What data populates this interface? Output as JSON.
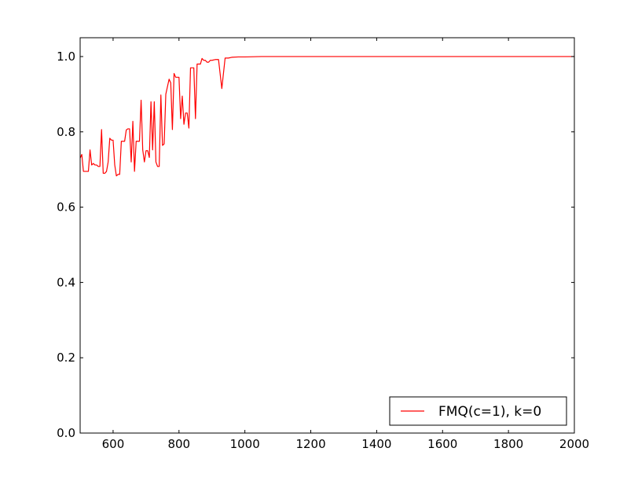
{
  "chart_data": {
    "type": "line",
    "title": "",
    "xlabel": "",
    "ylabel": "",
    "xlim": [
      500,
      2000
    ],
    "ylim": [
      0.0,
      1.05
    ],
    "x_ticks": [
      {
        "value": 600,
        "label": "600"
      },
      {
        "value": 800,
        "label": "800"
      },
      {
        "value": 1000,
        "label": "1000"
      },
      {
        "value": 1200,
        "label": "1200"
      },
      {
        "value": 1400,
        "label": "1400"
      },
      {
        "value": 1600,
        "label": "1600"
      },
      {
        "value": 1800,
        "label": "1800"
      },
      {
        "value": 2000,
        "label": "2000"
      }
    ],
    "y_ticks": [
      {
        "value": 0.0,
        "label": "0.0"
      },
      {
        "value": 0.2,
        "label": "0.2"
      },
      {
        "value": 0.4,
        "label": "0.4"
      },
      {
        "value": 0.6,
        "label": "0.6"
      },
      {
        "value": 0.8,
        "label": "0.8"
      },
      {
        "value": 1.0,
        "label": "1.0"
      }
    ],
    "grid": false,
    "legend": {
      "placement": "lower-right"
    },
    "series": [
      {
        "name": "FMQ(c=1), k=0",
        "color": "#ff0000",
        "points": [
          [
            500,
            0.73
          ],
          [
            505,
            0.74
          ],
          [
            510,
            0.695
          ],
          [
            520,
            0.695
          ],
          [
            525,
            0.695
          ],
          [
            530,
            0.752
          ],
          [
            535,
            0.712
          ],
          [
            540,
            0.716
          ],
          [
            545,
            0.712
          ],
          [
            550,
            0.712
          ],
          [
            555,
            0.708
          ],
          [
            560,
            0.708
          ],
          [
            565,
            0.806
          ],
          [
            570,
            0.69
          ],
          [
            575,
            0.69
          ],
          [
            580,
            0.695
          ],
          [
            585,
            0.72
          ],
          [
            590,
            0.783
          ],
          [
            595,
            0.778
          ],
          [
            600,
            0.778
          ],
          [
            605,
            0.712
          ],
          [
            610,
            0.683
          ],
          [
            615,
            0.687
          ],
          [
            620,
            0.687
          ],
          [
            625,
            0.775
          ],
          [
            630,
            0.775
          ],
          [
            635,
            0.775
          ],
          [
            640,
            0.805
          ],
          [
            645,
            0.808
          ],
          [
            650,
            0.808
          ],
          [
            655,
            0.72
          ],
          [
            660,
            0.828
          ],
          [
            665,
            0.695
          ],
          [
            670,
            0.775
          ],
          [
            675,
            0.775
          ],
          [
            680,
            0.775
          ],
          [
            685,
            0.884
          ],
          [
            690,
            0.752
          ],
          [
            695,
            0.72
          ],
          [
            700,
            0.75
          ],
          [
            705,
            0.75
          ],
          [
            710,
            0.732
          ],
          [
            715,
            0.88
          ],
          [
            720,
            0.752
          ],
          [
            725,
            0.88
          ],
          [
            730,
            0.72
          ],
          [
            735,
            0.708
          ],
          [
            740,
            0.708
          ],
          [
            745,
            0.898
          ],
          [
            750,
            0.764
          ],
          [
            755,
            0.768
          ],
          [
            760,
            0.9
          ],
          [
            765,
            0.92
          ],
          [
            770,
            0.94
          ],
          [
            775,
            0.93
          ],
          [
            780,
            0.806
          ],
          [
            785,
            0.955
          ],
          [
            790,
            0.945
          ],
          [
            795,
            0.945
          ],
          [
            800,
            0.945
          ],
          [
            805,
            0.835
          ],
          [
            810,
            0.895
          ],
          [
            815,
            0.82
          ],
          [
            820,
            0.85
          ],
          [
            825,
            0.85
          ],
          [
            830,
            0.81
          ],
          [
            835,
            0.97
          ],
          [
            840,
            0.97
          ],
          [
            845,
            0.97
          ],
          [
            850,
            0.835
          ],
          [
            855,
            0.98
          ],
          [
            860,
            0.98
          ],
          [
            865,
            0.98
          ],
          [
            870,
            0.995
          ],
          [
            875,
            0.99
          ],
          [
            880,
            0.99
          ],
          [
            885,
            0.985
          ],
          [
            890,
            0.985
          ],
          [
            895,
            0.99
          ],
          [
            900,
            0.99
          ],
          [
            910,
            0.992
          ],
          [
            920,
            0.992
          ],
          [
            930,
            0.915
          ],
          [
            940,
            0.996
          ],
          [
            950,
            0.996
          ],
          [
            960,
            0.998
          ],
          [
            980,
            0.999
          ],
          [
            1000,
            0.999
          ],
          [
            1050,
            1.0
          ],
          [
            1100,
            1.0
          ],
          [
            1200,
            1.0
          ],
          [
            1400,
            1.0
          ],
          [
            1600,
            1.0
          ],
          [
            1800,
            1.0
          ],
          [
            2000,
            1.0
          ]
        ]
      }
    ]
  }
}
